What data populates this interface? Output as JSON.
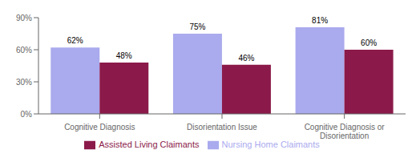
{
  "chart_data": {
    "type": "bar",
    "categories": [
      "Cognitive Diagnosis",
      "Disorientation Issue",
      "Cognitive Diagnosis or\nDisorientation"
    ],
    "series": [
      {
        "name": "Nursing Home Claimants",
        "color": "#aaaaee",
        "values": [
          62,
          75,
          81
        ],
        "value_labels": [
          "62%",
          "75%",
          "81%"
        ]
      },
      {
        "name": "Assisted Living Claimants",
        "color": "#8b1a4a",
        "values": [
          48,
          46,
          60
        ],
        "value_labels": [
          "48%",
          "46%",
          "60%"
        ]
      }
    ],
    "ylim": [
      0,
      90
    ],
    "yticks": [
      {
        "value": 0,
        "label": "0%"
      },
      {
        "value": 30,
        "label": "30%"
      },
      {
        "value": 60,
        "label": "60%"
      },
      {
        "value": 90,
        "label": "90%"
      }
    ],
    "grid": false,
    "legend": "bottom",
    "data_labels": true
  }
}
